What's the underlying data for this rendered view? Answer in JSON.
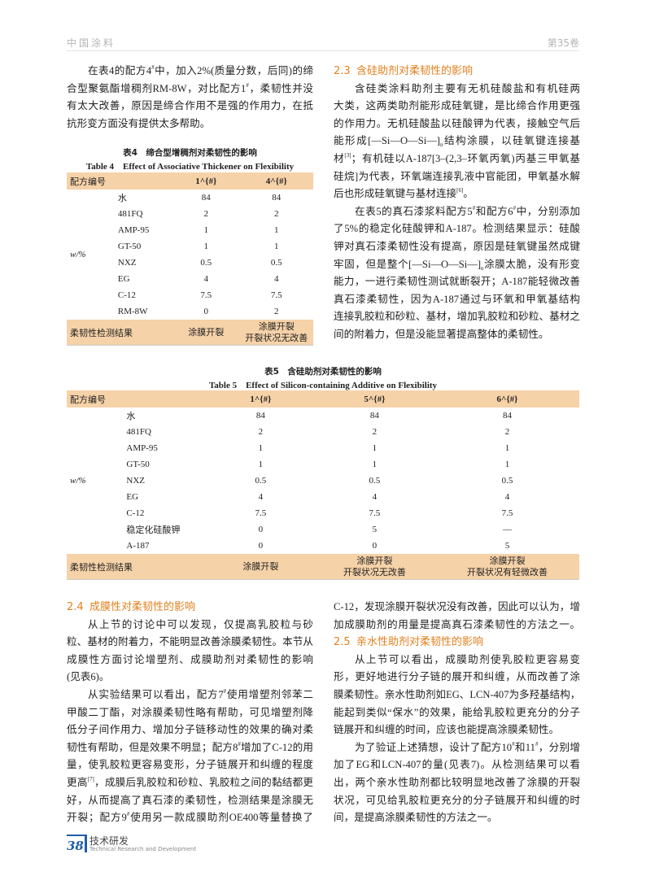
{
  "header": {
    "journal": "中国涂料",
    "volume": "第35卷"
  },
  "left_top": {
    "paragraphs": [
      [
        "在表4的配方4^{#}中，加入2%(质量分数，后同)的缔",
        "合型聚氨酯增稠剂RM-8W，对比配方1^{#}，柔韧性并没",
        "有太大改善，原因是缔合作用不是强的作用力，在抵",
        "抗形变方面没有提供太多帮助。"
      ]
    ]
  },
  "table4": {
    "caption_cn": "表4　缔合型增稠剂对柔韧性的影响",
    "caption_en": "Table 4　Effect of Associative Thickener on Flexibility",
    "header_label": "配方编号",
    "columns": [
      "1^{#}",
      "4^{#}"
    ],
    "unit": "w/%",
    "rows": [
      {
        "name": "水",
        "values": [
          "84",
          "84"
        ]
      },
      {
        "name": "481FQ",
        "values": [
          "2",
          "2"
        ]
      },
      {
        "name": "AMP-95",
        "values": [
          "1",
          "1"
        ]
      },
      {
        "name": "GT-50",
        "values": [
          "1",
          "1"
        ]
      },
      {
        "name": "NXZ",
        "values": [
          "0.5",
          "0.5"
        ]
      },
      {
        "name": "EG",
        "values": [
          "4",
          "4"
        ]
      },
      {
        "name": "C-12",
        "values": [
          "7.5",
          "7.5"
        ]
      },
      {
        "name": "RM-8W",
        "values": [
          "0",
          "2"
        ]
      }
    ],
    "result_label": "柔韧性检测结果",
    "results": [
      [
        "涂膜开裂"
      ],
      [
        "涂膜开裂",
        "开裂状况无改善"
      ]
    ]
  },
  "right_top": {
    "heading_num": "2.3",
    "heading": "含硅助剂对柔韧性的影响",
    "paragraphs": [
      [
        "含硅类涂料助剂主要有无机硅酸盐和有机硅两",
        "大类，这两类助剂能形成硅氧键，是比缔合作用更强",
        "的作用力。无机硅酸盐以硅酸钾为代表，接触空气后",
        "能形成[—Si—O—Si—]_{n}结构涂膜，以硅氧键连接基",
        "材^{[3]}；有机硅以A-187[3–(2,3–环氧丙氧)丙基三甲氧基",
        "硅烷]为代表，环氧端连接乳液中官能团，甲氧基水解",
        "后也形成硅氧键与基材连接^{[6]}。"
      ],
      [
        "在表5的真石漆浆料配方5^{#}和配方6^{#}中，分别添加",
        "了5%的稳定化硅酸钾和A-187。检测结果显示：硅酸",
        "钾对真石漆柔韧性没有提高，原因是硅氧键虽然成键",
        "牢固，但是整个[—Si—O—Si—]_{n}涂膜太脆，没有形变",
        "能力，一进行柔韧性测试就断裂开；A-187能轻微改善",
        "真石漆柔韧性，因为A-187通过与环氧和甲氧基结构",
        "连接乳胶粒和砂粒、基材，增加乳胶粒和砂粒、基材之",
        "间的附着力，但是没能显著提高整体的柔韧性。"
      ]
    ]
  },
  "table5": {
    "caption_cn": "表5　含硅助剂对柔韧性的影响",
    "caption_en": "Table 5　Effect of Silicon-containing Additive on Flexibility",
    "header_label": "配方编号",
    "columns": [
      "1^{#}",
      "5^{#}",
      "6^{#}"
    ],
    "unit": "w/%",
    "rows": [
      {
        "name": "水",
        "values": [
          "84",
          "84",
          "84"
        ]
      },
      {
        "name": "481FQ",
        "values": [
          "2",
          "2",
          "2"
        ]
      },
      {
        "name": "AMP-95",
        "values": [
          "1",
          "1",
          "1"
        ]
      },
      {
        "name": "GT-50",
        "values": [
          "1",
          "1",
          "1"
        ]
      },
      {
        "name": "NXZ",
        "values": [
          "0.5",
          "0.5",
          "0.5"
        ]
      },
      {
        "name": "EG",
        "values": [
          "4",
          "4",
          "4"
        ]
      },
      {
        "name": "C-12",
        "values": [
          "7.5",
          "7.5",
          "7.5"
        ]
      },
      {
        "name": "稳定化硅酸钾",
        "values": [
          "0",
          "5",
          "—"
        ]
      },
      {
        "name": "A-187",
        "values": [
          "0",
          "0",
          "5"
        ]
      }
    ],
    "result_label": "柔韧性检测结果",
    "results": [
      [
        "涂膜开裂"
      ],
      [
        "涂膜开裂",
        "开裂状况无改善"
      ],
      [
        "涂膜开裂",
        "开裂状况有轻微改善"
      ]
    ]
  },
  "left_bottom": {
    "heading_num": "2.4",
    "heading": "成膜性对柔韧性的影响",
    "paragraphs": [
      [
        "从上节的讨论中可以发现，仅提高乳胶粒与砂",
        "粒、基材的附着力，不能明显改善涂膜柔韧性。本节从",
        "成膜性方面讨论增塑剂、成膜助剂对柔韧性的影响",
        "(见表6)。"
      ],
      [
        "从实验结果可以看出，配方7^{#}使用增塑剂邻苯二",
        "甲酸二丁酯，对涂膜柔韧性略有帮助，可见增塑剂降",
        "低分子间作用力、增加分子链移动性的效果的确对柔",
        "韧性有帮助，但是效果不明显；配方8^{#}增加了C-12的用",
        "量，使乳胶粒更容易变形，分子链展开和纠缠的程度",
        "更高^{[7]}，成膜后乳胶粒和砂粒、乳胶粒之间的黏结都更",
        "好，从而提高了真石漆的柔韧性，检测结果是涂膜无",
        "开裂；配方9^{#}使用另一款成膜助剂OE400等量替换了"
      ]
    ]
  },
  "right_bottom": {
    "continued": [
      "C-12，发现涂膜开裂状况没有改善，因此可以认为，增",
      "加成膜助剂的用量是提高真石漆柔韧性的方法之一。"
    ],
    "heading_num": "2.5",
    "heading": "亲水性助剂对柔韧性的影响",
    "paragraphs": [
      [
        "从上节可以看出，成膜助剂使乳胶粒更容易变",
        "形，更好地进行分子链的展开和纠缠，从而改善了涂",
        "膜柔韧性。亲水性助剂如EG、LCN-407为多羟基结构，",
        "能起到类似“保水”的效果，能给乳胶粒更充分的分子",
        "链展开和纠缠的时间，应该也能提高涂膜柔韧性。"
      ],
      [
        "为了验证上述猜想，设计了配方10^{#}和11^{#}，分别增",
        "加了EG和LCN-407的量(见表7)。从检测结果可以看",
        "出，两个亲水性助剂都比较明显地改善了涂膜的开裂",
        "状况，可见给乳胶粒更充分的分子链展开和纠缠的时",
        "间，是提高涂膜柔韧性的方法之一。"
      ]
    ]
  },
  "footer": {
    "page_number": "38",
    "section_cn": "技术研发",
    "section_en": "Technical Research and Development"
  }
}
